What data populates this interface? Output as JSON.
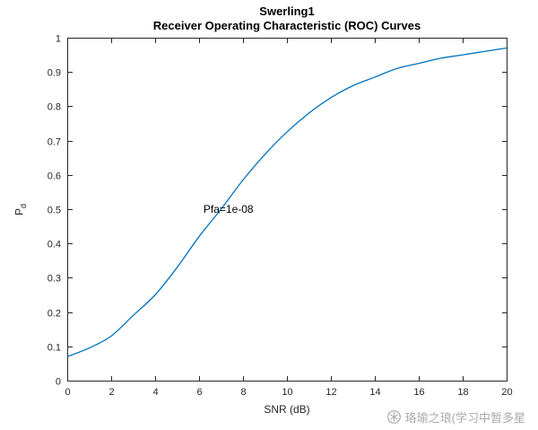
{
  "chart_data": {
    "type": "line",
    "title": "Swerling1",
    "subtitle": "Receiver Operating Characteristic (ROC) Curves",
    "xlabel": "SNR (dB)",
    "ylabel": "P_d",
    "ylabel_main": "P",
    "ylabel_sub": "d",
    "xlim": [
      0,
      20
    ],
    "ylim": [
      0,
      1
    ],
    "x_ticks": [
      0,
      2,
      4,
      6,
      8,
      10,
      12,
      14,
      16,
      18,
      20
    ],
    "x_tick_labels": [
      "0",
      "2",
      "4",
      "6",
      "8",
      "10",
      "12",
      "14",
      "16",
      "18",
      "20"
    ],
    "y_ticks": [
      0,
      0.1,
      0.2,
      0.3,
      0.4,
      0.5,
      0.6,
      0.7,
      0.8,
      0.9,
      1
    ],
    "y_tick_labels": [
      "0",
      "0.1",
      "0.2",
      "0.3",
      "0.4",
      "0.5",
      "0.6",
      "0.7",
      "0.8",
      "0.9",
      "1"
    ],
    "grid": false,
    "legend": null,
    "axis_color": "#262626",
    "background": "#ffffff",
    "series": [
      {
        "name": "Pfa=1e-08",
        "color": "#0072BD",
        "x": [
          0,
          1,
          2,
          3,
          4,
          5,
          6,
          7,
          8,
          9,
          10,
          11,
          12,
          13,
          14,
          15,
          16,
          17,
          18,
          19,
          20
        ],
        "y": [
          0.07,
          0.095,
          0.13,
          0.19,
          0.25,
          0.33,
          0.42,
          0.5,
          0.585,
          0.66,
          0.725,
          0.78,
          0.825,
          0.86,
          0.885,
          0.91,
          0.925,
          0.94,
          0.95,
          0.96,
          0.97
        ]
      }
    ],
    "annotation": {
      "text": "Pfa=1e-08",
      "x": 6.2,
      "y": 0.5
    }
  },
  "watermark": {
    "text": "珞瑜之琅(学习中暂多星",
    "icon": "flower-logo-icon",
    "color": "#a9a9a9"
  }
}
